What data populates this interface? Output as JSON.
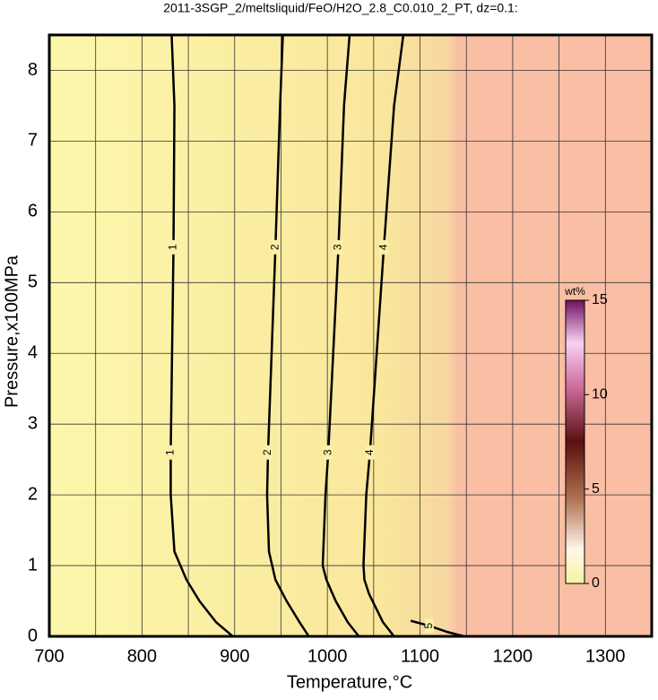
{
  "chart_data": {
    "type": "contour",
    "title": "2011-3SGP_2/meltsliquid/FeO/H2O_2.8_C0.010_2_PT, dz=0.1:",
    "x_label": "Temperature,°C",
    "y_label": "Pressure,x100MPa",
    "xlim": [
      700,
      1350
    ],
    "ylim": [
      0,
      8.5
    ],
    "xticks": [
      700,
      800,
      900,
      1000,
      1100,
      1200,
      1300
    ],
    "xgrid": [
      750,
      850,
      950,
      1050,
      1150,
      1250,
      1350
    ],
    "yticks": [
      0,
      1,
      2,
      3,
      4,
      5,
      6,
      7,
      8
    ],
    "grid": true,
    "contours": [
      {
        "level": 1,
        "x": [
          832,
          835,
          834,
          831,
          831,
          835,
          848,
          862,
          880,
          898
        ],
        "y": [
          8.5,
          7.5,
          5.5,
          2.6,
          2,
          1.2,
          0.8,
          0.5,
          0.2,
          0
        ]
      },
      {
        "level": 2,
        "x": [
          952,
          949,
          944,
          936,
          935,
          937,
          944,
          956,
          970,
          980
        ],
        "y": [
          8.5,
          7.5,
          5.5,
          2.6,
          2,
          1.2,
          0.8,
          0.5,
          0.2,
          0
        ]
      },
      {
        "level": 3,
        "x": [
          1024,
          1018,
          1012,
          1001,
          998,
          995,
          999,
          1009,
          1022,
          1034
        ],
        "y": [
          8.5,
          7.5,
          5.5,
          2.6,
          2,
          1.0,
          0.8,
          0.5,
          0.2,
          0
        ]
      },
      {
        "level": 4,
        "x": [
          1082,
          1072,
          1061,
          1046,
          1042,
          1039,
          1040,
          1045,
          1060,
          1072
        ],
        "y": [
          8.5,
          7.5,
          5.5,
          2.6,
          2,
          1.0,
          0.8,
          0.6,
          0.2,
          0
        ]
      },
      {
        "level": 5,
        "x": [
          1090,
          1110,
          1130,
          1148
        ],
        "y": [
          0.22,
          0.15,
          0.06,
          0
        ]
      }
    ],
    "colorbar": {
      "label": "wt%",
      "ylim": [
        0,
        15
      ],
      "yticks": [
        0,
        5,
        10,
        15
      ]
    }
  }
}
